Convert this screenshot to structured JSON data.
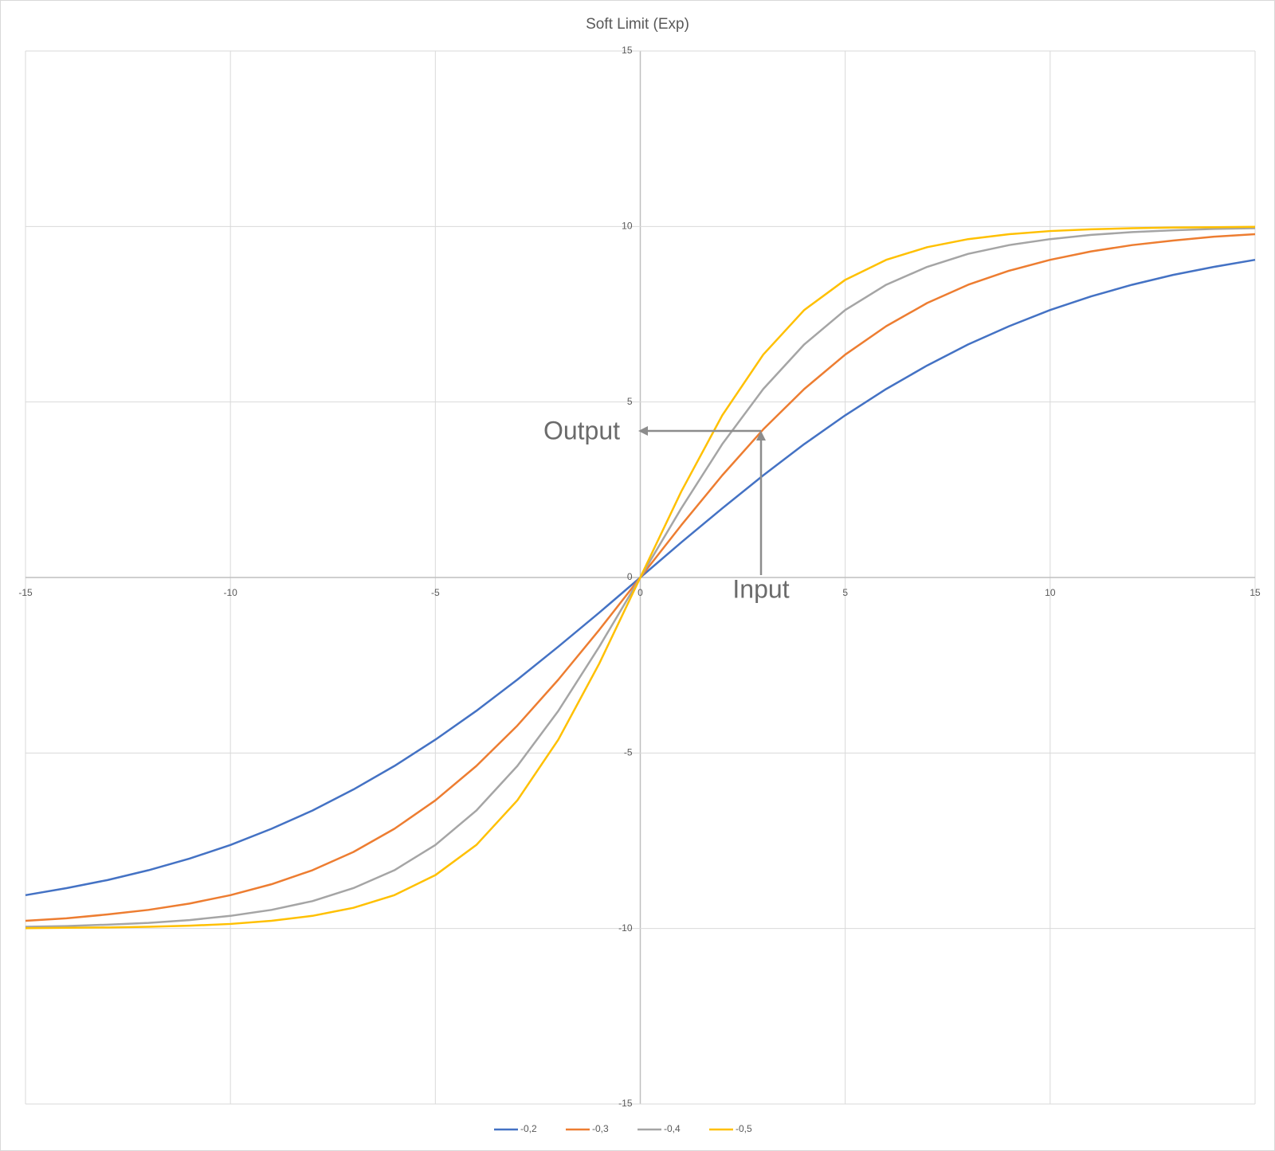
{
  "chart_data": {
    "type": "line",
    "title": "Soft Limit (Exp)",
    "x": [
      -15,
      -14,
      -13,
      -12,
      -11,
      -10,
      -9,
      -8,
      -7,
      -6,
      -5,
      -4,
      -3,
      -2,
      -1,
      0,
      1,
      2,
      3,
      4,
      5,
      6,
      7,
      8,
      9,
      10,
      11,
      12,
      13,
      14,
      15
    ],
    "series": [
      {
        "name": "-0,2",
        "color": "#4472c4",
        "values": [
          -9.05,
          -8.85,
          -8.62,
          -8.34,
          -8.01,
          -7.62,
          -7.16,
          -6.64,
          -6.04,
          -5.37,
          -4.62,
          -3.8,
          -2.91,
          -1.97,
          -1.0,
          0,
          1.0,
          1.97,
          2.91,
          3.8,
          4.62,
          5.37,
          6.04,
          6.64,
          7.16,
          7.62,
          8.01,
          8.34,
          8.62,
          8.85,
          9.05
        ]
      },
      {
        "name": "-0,3",
        "color": "#ed7d31",
        "values": [
          -9.78,
          -9.71,
          -9.6,
          -9.47,
          -9.29,
          -9.05,
          -8.74,
          -8.34,
          -7.82,
          -7.16,
          -6.35,
          -5.37,
          -4.22,
          -2.91,
          -1.49,
          0,
          1.49,
          2.91,
          4.22,
          5.37,
          6.35,
          7.16,
          7.82,
          8.34,
          8.74,
          9.05,
          9.29,
          9.47,
          9.6,
          9.71,
          9.78
        ]
      },
      {
        "name": "-0,4",
        "color": "#a5a5a5",
        "values": [
          -9.95,
          -9.93,
          -9.89,
          -9.84,
          -9.76,
          -9.64,
          -9.47,
          -9.22,
          -8.85,
          -8.34,
          -7.62,
          -6.64,
          -5.37,
          -3.8,
          -1.97,
          0,
          1.97,
          3.8,
          5.37,
          6.64,
          7.62,
          8.34,
          8.85,
          9.22,
          9.47,
          9.64,
          9.76,
          9.84,
          9.89,
          9.93,
          9.95
        ]
      },
      {
        "name": "-0,5",
        "color": "#ffc000",
        "values": [
          -9.99,
          -9.98,
          -9.97,
          -9.95,
          -9.92,
          -9.87,
          -9.78,
          -9.64,
          -9.41,
          -9.05,
          -8.48,
          -7.62,
          -6.35,
          -4.62,
          -2.45,
          0,
          2.45,
          4.62,
          6.35,
          7.62,
          8.48,
          9.05,
          9.41,
          9.64,
          9.78,
          9.87,
          9.92,
          9.95,
          9.97,
          9.98,
          9.99
        ]
      }
    ],
    "xlim": [
      -15,
      15
    ],
    "xticks": [
      -15,
      -10,
      -5,
      0,
      5,
      10,
      15
    ],
    "ylim": [
      -15,
      15
    ],
    "yticks": [
      -15,
      -10,
      -5,
      0,
      5,
      10,
      15
    ],
    "grid": true,
    "legend": "bottom",
    "annotations": [
      "Output",
      "Input"
    ]
  }
}
